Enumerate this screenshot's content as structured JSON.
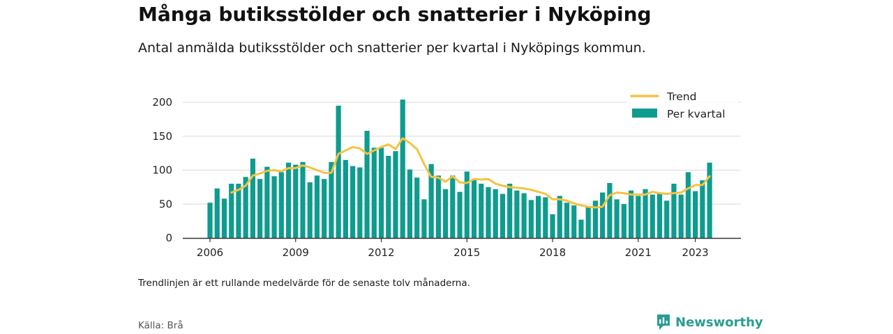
{
  "title": "Många butiksstölder och snatterier i Nyköping",
  "subtitle": "Antal anmälda butiksstölder och snatterier per kvartal i Nyköpings kommun.",
  "note": "Trendlinjen är ett rullande medelvärde för de senaste tolv månaderna.",
  "source": "Källa: Brå",
  "brand": "Newsworthy",
  "colors": {
    "bar": "#0e9c8f",
    "trend": "#f5c242",
    "brand": "#2a9d8f"
  },
  "chart_data": {
    "type": "bar",
    "x_start": "2006 Q1",
    "x_ticks": [
      "2006",
      "2009",
      "2012",
      "2015",
      "2018",
      "2021",
      "2023"
    ],
    "y_ticks": [
      0,
      50,
      100,
      150,
      200
    ],
    "ylim": [
      0,
      210
    ],
    "grid": true,
    "legend_position": "top-right",
    "series": [
      {
        "name": "Per kvartal",
        "kind": "bar",
        "values": [
          52,
          73,
          58,
          80,
          80,
          90,
          117,
          87,
          105,
          91,
          97,
          111,
          108,
          112,
          82,
          92,
          87,
          112,
          195,
          115,
          106,
          104,
          158,
          133,
          133,
          121,
          128,
          204,
          101,
          89,
          57,
          109,
          92,
          72,
          92,
          68,
          98,
          87,
          80,
          75,
          72,
          65,
          80,
          70,
          66,
          56,
          62,
          60,
          35,
          62,
          52,
          48,
          27,
          46,
          55,
          67,
          81,
          57,
          50,
          70,
          62,
          72,
          64,
          67,
          55,
          80,
          64,
          97,
          69,
          85,
          111
        ]
      },
      {
        "name": "Trend",
        "kind": "line",
        "values": [
          null,
          null,
          null,
          67,
          71,
          77,
          92,
          95,
          99,
          100,
          98,
          103,
          103,
          107,
          104,
          100,
          96,
          96,
          124,
          129,
          134,
          132,
          124,
          129,
          134,
          138,
          131,
          147,
          140,
          131,
          109,
          90,
          89,
          83,
          91,
          82,
          81,
          87,
          86,
          87,
          80,
          77,
          75,
          74,
          73,
          71,
          68,
          65,
          57,
          57,
          55,
          51,
          48,
          46,
          45,
          46,
          63,
          67,
          66,
          64,
          64,
          64,
          68,
          66,
          65,
          66,
          67,
          73,
          78,
          78,
          91
        ]
      }
    ]
  }
}
